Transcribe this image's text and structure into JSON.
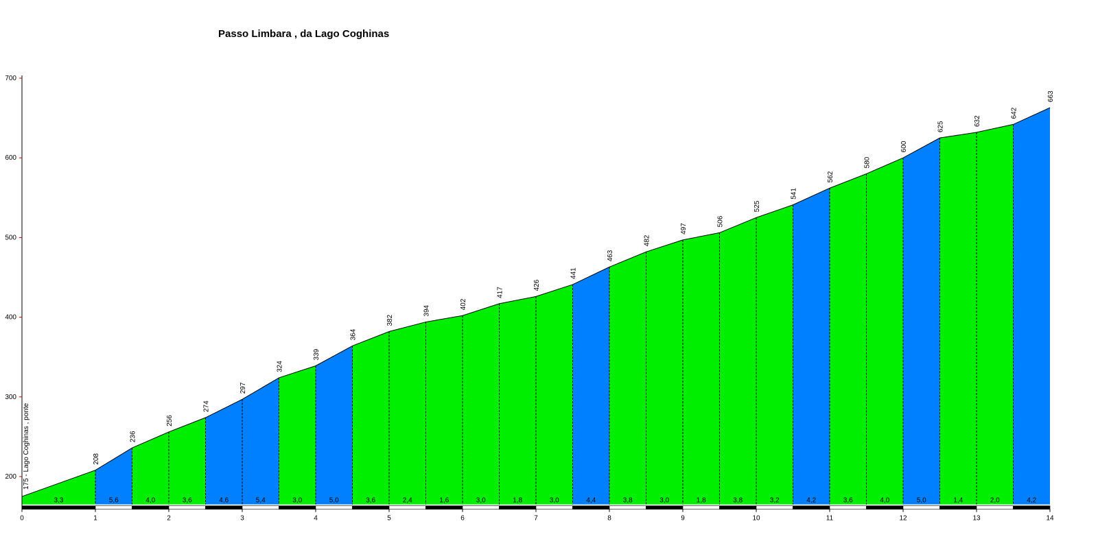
{
  "chart_data": {
    "type": "area",
    "title": "Passo Limbara , da Lago Coghinas",
    "xlabel": "",
    "ylabel": "",
    "xlim": [
      0,
      14
    ],
    "ylim": [
      165,
      700
    ],
    "x_ticks": [
      "0",
      "1",
      "2",
      "3",
      "4",
      "5",
      "6",
      "7",
      "8",
      "9",
      "10",
      "11",
      "12",
      "13",
      "14"
    ],
    "y_ticks": [
      "200",
      "300",
      "400",
      "500",
      "600",
      "700"
    ],
    "start_label": "175 - Lago Coghinas , ponte",
    "points": [
      {
        "x": 0,
        "y": 175
      },
      {
        "x": 1,
        "y": 208
      },
      {
        "x": 1.5,
        "y": 236
      },
      {
        "x": 2,
        "y": 256
      },
      {
        "x": 2.5,
        "y": 274
      },
      {
        "x": 3,
        "y": 297
      },
      {
        "x": 3.5,
        "y": 324
      },
      {
        "x": 4,
        "y": 339
      },
      {
        "x": 4.5,
        "y": 364
      },
      {
        "x": 5,
        "y": 382
      },
      {
        "x": 5.5,
        "y": 394
      },
      {
        "x": 6,
        "y": 402
      },
      {
        "x": 6.5,
        "y": 417
      },
      {
        "x": 7,
        "y": 426
      },
      {
        "x": 7.5,
        "y": 441
      },
      {
        "x": 8,
        "y": 463
      },
      {
        "x": 8.5,
        "y": 482
      },
      {
        "x": 9,
        "y": 497
      },
      {
        "x": 9.5,
        "y": 506
      },
      {
        "x": 10,
        "y": 525
      },
      {
        "x": 10.5,
        "y": 541
      },
      {
        "x": 11,
        "y": 562
      },
      {
        "x": 11.5,
        "y": 580
      },
      {
        "x": 12,
        "y": 600
      },
      {
        "x": 12.5,
        "y": 625
      },
      {
        "x": 13,
        "y": 632
      },
      {
        "x": 13.5,
        "y": 642
      },
      {
        "x": 14,
        "y": 663
      }
    ],
    "point_labels": [
      "",
      "208",
      "236",
      "256",
      "274",
      "297",
      "324",
      "339",
      "364",
      "382",
      "394",
      "402",
      "417",
      "426",
      "441",
      "463",
      "482",
      "497",
      "506",
      "525",
      "541",
      "562",
      "580",
      "600",
      "625",
      "632",
      "642",
      "663"
    ],
    "segments": [
      {
        "from": 0,
        "to": 1,
        "grade": "3,3",
        "color": "#00ee00"
      },
      {
        "from": 1,
        "to": 1.5,
        "grade": "5,6",
        "color": "#0080ff"
      },
      {
        "from": 1.5,
        "to": 2,
        "grade": "4,0",
        "color": "#00ee00"
      },
      {
        "from": 2,
        "to": 2.5,
        "grade": "3,6",
        "color": "#00ee00"
      },
      {
        "from": 2.5,
        "to": 3,
        "grade": "4,6",
        "color": "#0080ff"
      },
      {
        "from": 3,
        "to": 3.5,
        "grade": "5,4",
        "color": "#0080ff"
      },
      {
        "from": 3.5,
        "to": 4,
        "grade": "3,0",
        "color": "#00ee00"
      },
      {
        "from": 4,
        "to": 4.5,
        "grade": "5,0",
        "color": "#0080ff"
      },
      {
        "from": 4.5,
        "to": 5,
        "grade": "3,6",
        "color": "#00ee00"
      },
      {
        "from": 5,
        "to": 5.5,
        "grade": "2,4",
        "color": "#00ee00"
      },
      {
        "from": 5.5,
        "to": 6,
        "grade": "1,6",
        "color": "#00ee00"
      },
      {
        "from": 6,
        "to": 6.5,
        "grade": "3,0",
        "color": "#00ee00"
      },
      {
        "from": 6.5,
        "to": 7,
        "grade": "1,8",
        "color": "#00ee00"
      },
      {
        "from": 7,
        "to": 7.5,
        "grade": "3,0",
        "color": "#00ee00"
      },
      {
        "from": 7.5,
        "to": 8,
        "grade": "4,4",
        "color": "#0080ff"
      },
      {
        "from": 8,
        "to": 8.5,
        "grade": "3,8",
        "color": "#00ee00"
      },
      {
        "from": 8.5,
        "to": 9,
        "grade": "3,0",
        "color": "#00ee00"
      },
      {
        "from": 9,
        "to": 9.5,
        "grade": "1,8",
        "color": "#00ee00"
      },
      {
        "from": 9.5,
        "to": 10,
        "grade": "3,8",
        "color": "#00ee00"
      },
      {
        "from": 10,
        "to": 10.5,
        "grade": "3,2",
        "color": "#00ee00"
      },
      {
        "from": 10.5,
        "to": 11,
        "grade": "4,2",
        "color": "#0080ff"
      },
      {
        "from": 11,
        "to": 11.5,
        "grade": "3,6",
        "color": "#00ee00"
      },
      {
        "from": 11.5,
        "to": 12,
        "grade": "4,0",
        "color": "#00ee00"
      },
      {
        "from": 12,
        "to": 12.5,
        "grade": "5,0",
        "color": "#0080ff"
      },
      {
        "from": 12.5,
        "to": 13,
        "grade": "1,4",
        "color": "#00ee00"
      },
      {
        "from": 13,
        "to": 13.5,
        "grade": "2,0",
        "color": "#00ee00"
      },
      {
        "from": 13.5,
        "to": 14,
        "grade": "4,2",
        "color": "#0080ff"
      }
    ],
    "grid": false,
    "km_bar_colors": [
      "#000000",
      "#ffffff"
    ]
  }
}
